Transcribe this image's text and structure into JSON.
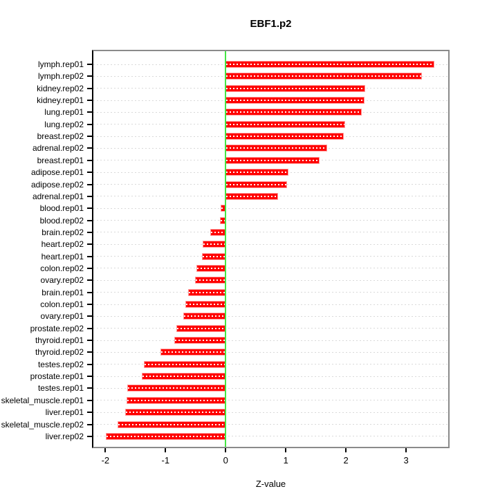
{
  "chart_data": {
    "type": "bar",
    "orientation": "horizontal",
    "title": "EBF1.p2",
    "xlabel": "Z-value",
    "categories": [
      "lymph.rep01",
      "lymph.rep02",
      "kidney.rep02",
      "kidney.rep01",
      "lung.rep01",
      "lung.rep02",
      "breast.rep02",
      "adrenal.rep02",
      "breast.rep01",
      "adipose.rep01",
      "adipose.rep02",
      "adrenal.rep01",
      "blood.rep01",
      "blood.rep02",
      "brain.rep02",
      "heart.rep02",
      "heart.rep01",
      "colon.rep02",
      "ovary.rep02",
      "brain.rep01",
      "colon.rep01",
      "ovary.rep01",
      "prostate.rep02",
      "thyroid.rep01",
      "thyroid.rep02",
      "testes.rep02",
      "prostate.rep01",
      "testes.rep01",
      "skeletal_muscle.rep01",
      "liver.rep01",
      "skeletal_muscle.rep02",
      "liver.rep02"
    ],
    "values": [
      3.47,
      3.26,
      2.32,
      2.31,
      2.26,
      1.99,
      1.96,
      1.69,
      1.56,
      1.04,
      1.02,
      0.87,
      -0.08,
      -0.09,
      -0.26,
      -0.38,
      -0.4,
      -0.49,
      -0.51,
      -0.62,
      -0.67,
      -0.7,
      -0.82,
      -0.85,
      -1.09,
      -1.36,
      -1.39,
      -1.64,
      -1.65,
      -1.67,
      -1.8,
      -1.99
    ],
    "x_tick_labels": [
      "-2",
      "-1",
      "0",
      "1",
      "2",
      "3"
    ],
    "x_tick_values": [
      -2,
      -1,
      0,
      1,
      2,
      3
    ],
    "xlim": [
      -2.2,
      3.7
    ],
    "reference_line_x": 0,
    "grid": "horizontal-dotted",
    "legend": "none",
    "colors": {
      "bar_fill": "#ff0000",
      "bar_border": "#ff9b9b",
      "bar_dash": "#ffffff",
      "reference_line": "#44e644",
      "gridline": "#d9d9d9",
      "box_border": "#8a8a8a",
      "axis": "#000000",
      "text": "#000000"
    }
  }
}
